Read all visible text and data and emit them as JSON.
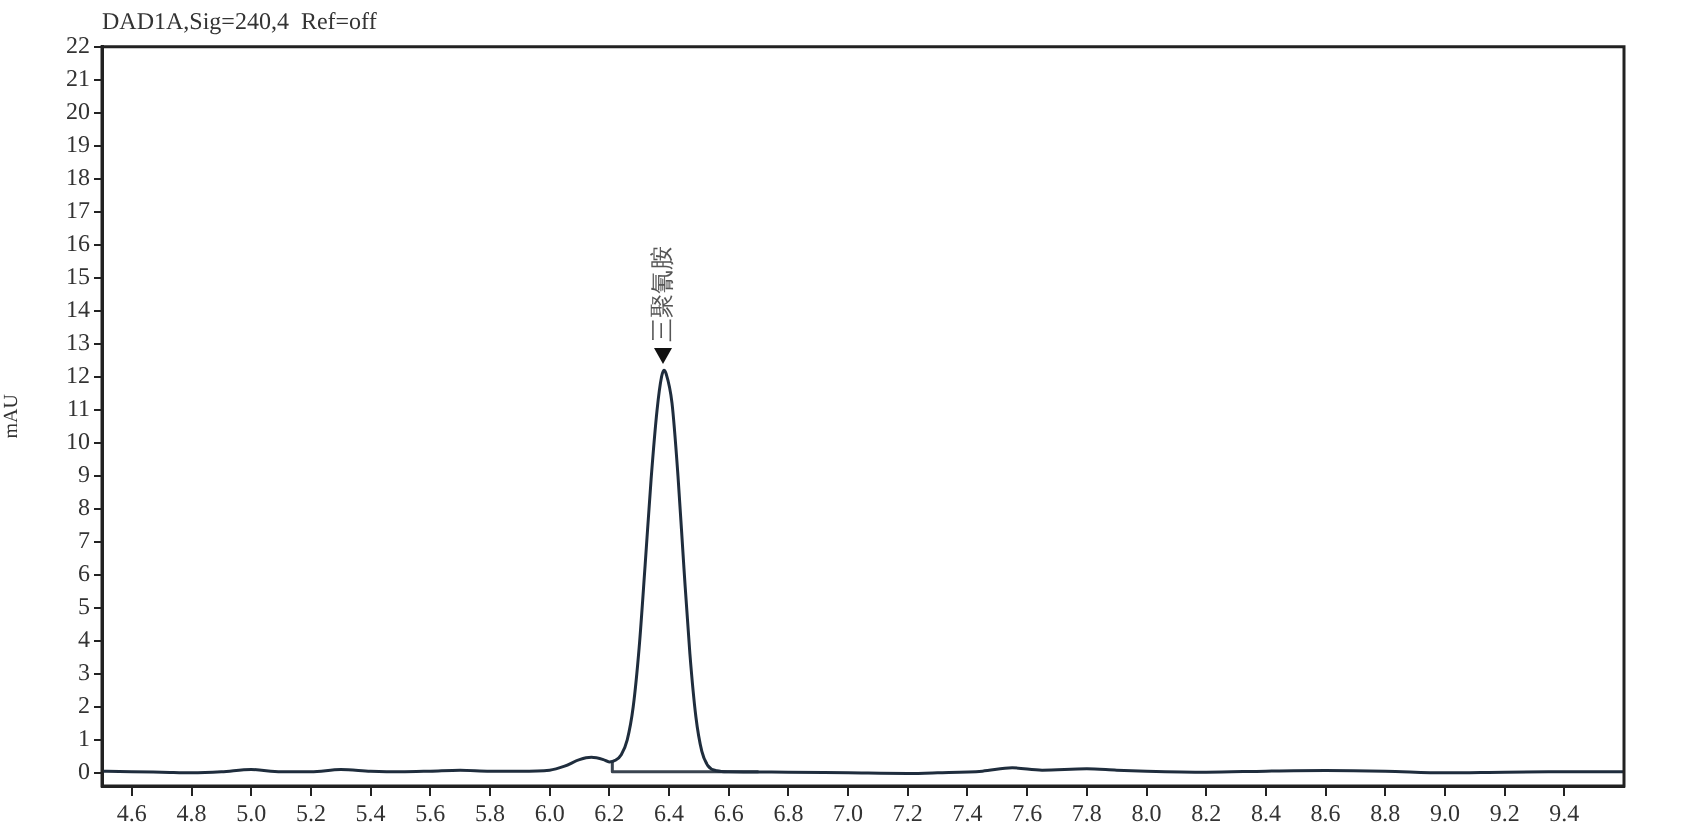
{
  "chart_data": {
    "type": "line",
    "title": "DAD1A,Sig=240,4  Ref=off",
    "ylabel": "mAU",
    "xlim": [
      4.5,
      9.6
    ],
    "xticks": [
      4.6,
      4.8,
      {
        "value": 5,
        "label": "5.0"
      },
      5.2,
      5.4,
      5.6,
      5.8,
      {
        "value": 6,
        "label": "6.0"
      },
      6.2,
      6.4,
      6.6,
      6.8,
      {
        "value": 7,
        "label": "7.0"
      },
      7.2,
      7.4,
      7.6,
      7.8,
      {
        "value": 8,
        "label": "8.0"
      },
      8.2,
      8.4,
      8.6,
      8.8,
      {
        "value": 9,
        "label": "9.0"
      },
      9.2,
      9.4
    ],
    "ylim": [
      -0.4,
      22
    ],
    "yticks": [
      0,
      1,
      2,
      3,
      4,
      5,
      6,
      7,
      8,
      9,
      10,
      11,
      12,
      13,
      14,
      15,
      16,
      17,
      18,
      19,
      20,
      21,
      22
    ],
    "series": [
      {
        "color": "#1f2d3d",
        "x": [
          4.5,
          4.6,
          4.7,
          4.8,
          4.9,
          5.0,
          5.1,
          5.2,
          5.3,
          5.4,
          5.5,
          5.6,
          5.7,
          5.8,
          5.9,
          6.0,
          6.05,
          6.1,
          6.14,
          6.18,
          6.2,
          6.22,
          6.24,
          6.26,
          6.28,
          6.3,
          6.32,
          6.34,
          6.36,
          6.375,
          6.383,
          6.39,
          6.41,
          6.43,
          6.45,
          6.47,
          6.49,
          6.51,
          6.53,
          6.56,
          6.6,
          6.8,
          7.0,
          7.2,
          7.3,
          7.45,
          7.55,
          7.65,
          7.8,
          7.9,
          8.0,
          8.2,
          8.4,
          8.6,
          8.8,
          9.0,
          9.2,
          9.4,
          9.6
        ],
        "values": [
          0.05,
          0.03,
          0.02,
          0.0,
          0.03,
          0.1,
          0.03,
          0.03,
          0.1,
          0.05,
          0.03,
          0.05,
          0.08,
          0.05,
          0.05,
          0.08,
          0.2,
          0.4,
          0.47,
          0.4,
          0.33,
          0.38,
          0.55,
          1.0,
          2.0,
          3.8,
          6.3,
          8.9,
          11.0,
          12.0,
          12.2,
          12.1,
          11.2,
          9.0,
          6.2,
          3.6,
          1.7,
          0.65,
          0.22,
          0.06,
          0.03,
          0.02,
          0.0,
          -0.02,
          0.0,
          0.05,
          0.15,
          0.08,
          0.12,
          0.08,
          0.05,
          0.02,
          0.05,
          0.07,
          0.05,
          0.0,
          0.02,
          0.03,
          0.03
        ]
      },
      {
        "color": "#3a4450",
        "x": [
          6.21,
          6.21,
          6.7
        ],
        "values": [
          0.33,
          0.03,
          0.03
        ]
      }
    ],
    "annotations": [
      {
        "text": "三聚氰胺",
        "x": 6.383,
        "y": 12.4
      }
    ]
  }
}
